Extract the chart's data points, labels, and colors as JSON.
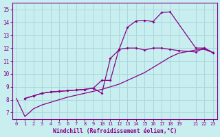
{
  "title": "",
  "xlabel": "Windchill (Refroidissement éolien,°C)",
  "ylabel": "",
  "xlim": [
    -0.5,
    23.5
  ],
  "ylim": [
    6.5,
    15.5
  ],
  "yticks": [
    7,
    8,
    9,
    10,
    11,
    12,
    13,
    14,
    15
  ],
  "xticks": [
    0,
    1,
    2,
    3,
    4,
    5,
    6,
    7,
    8,
    9,
    10,
    11,
    12,
    13,
    14,
    15,
    16,
    17,
    18,
    19,
    21,
    22,
    23
  ],
  "background_color": "#c8eef0",
  "grid_color": "#aad8dc",
  "line_color": "#880088",
  "line1_x": [
    0,
    1,
    2,
    3,
    4,
    5,
    6,
    7,
    8,
    9,
    10,
    11,
    12,
    13,
    14,
    15,
    16,
    17,
    18,
    19,
    21,
    22,
    23
  ],
  "line1_y": [
    8.1,
    6.7,
    7.3,
    7.6,
    7.8,
    8.0,
    8.2,
    8.35,
    8.5,
    8.65,
    8.8,
    9.0,
    9.2,
    9.5,
    9.8,
    10.1,
    10.5,
    10.9,
    11.3,
    11.6,
    11.85,
    11.9,
    11.65
  ],
  "line2_x": [
    1,
    2,
    3,
    4,
    5,
    6,
    7,
    8,
    9,
    10,
    11,
    12,
    13,
    14,
    15,
    16,
    17,
    18,
    21,
    22,
    23
  ],
  "line2_y": [
    8.1,
    8.3,
    8.5,
    8.6,
    8.65,
    8.7,
    8.75,
    8.8,
    8.9,
    8.5,
    11.2,
    11.85,
    13.6,
    14.1,
    14.15,
    14.05,
    14.75,
    14.8,
    12.0,
    12.0,
    11.65
  ],
  "line3_x": [
    1,
    2,
    3,
    4,
    5,
    6,
    7,
    8,
    9,
    10,
    11,
    12,
    13,
    14,
    15,
    16,
    17,
    18,
    19,
    21,
    22,
    23
  ],
  "line3_y": [
    8.1,
    8.3,
    8.5,
    8.6,
    8.65,
    8.7,
    8.75,
    8.8,
    8.9,
    9.5,
    9.5,
    11.9,
    12.0,
    12.0,
    11.85,
    12.0,
    12.0,
    11.9,
    11.8,
    11.7,
    12.0,
    11.65
  ]
}
